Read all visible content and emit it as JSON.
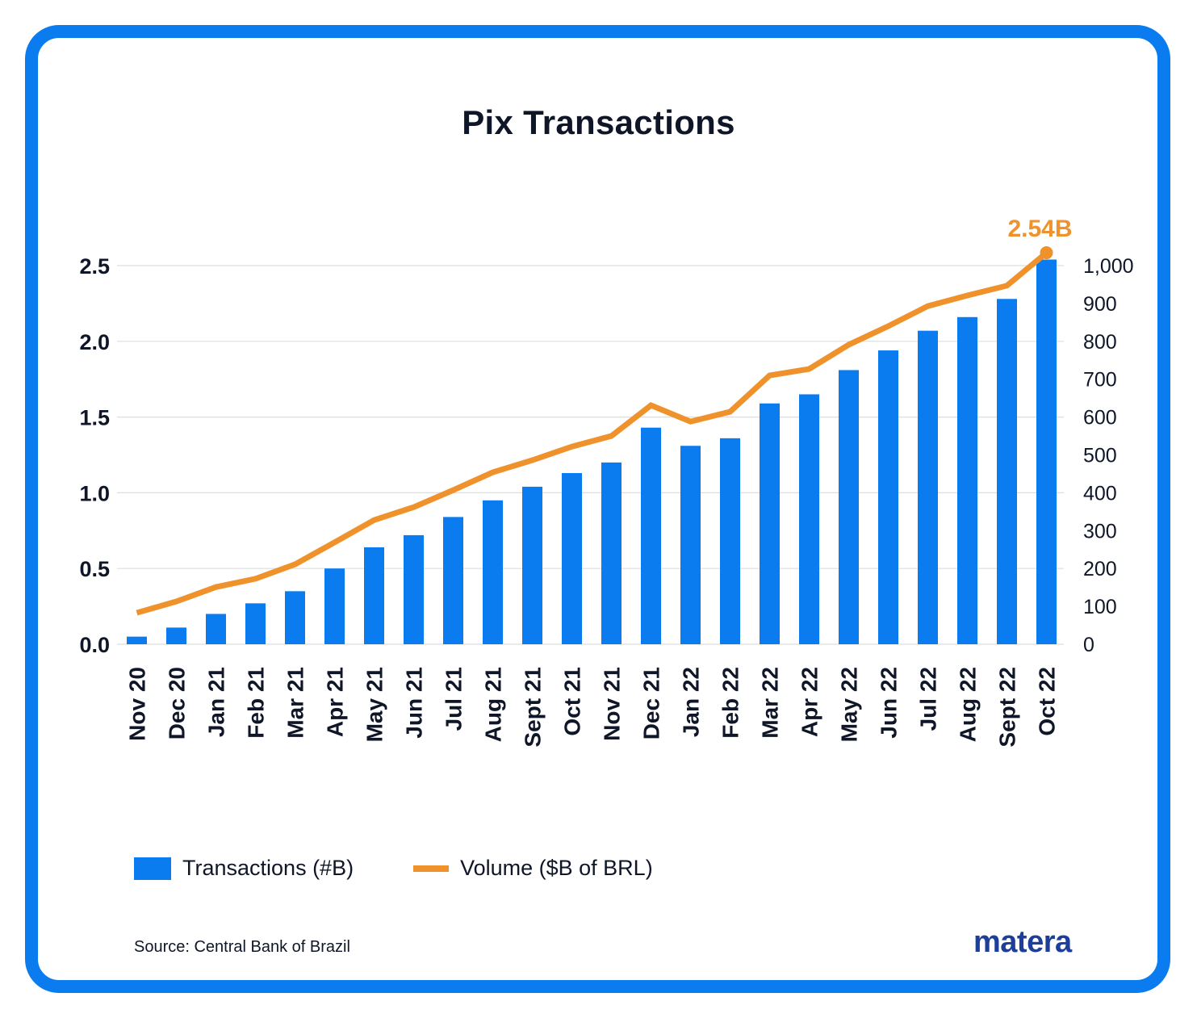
{
  "title": "Pix Transactions",
  "colors": {
    "frame": "#0a7cf0",
    "bar": "#0a7cf0",
    "line": "#f0922b",
    "text": "#0f1628",
    "logo": "#1e3f99",
    "grid": "#dddddd"
  },
  "chart_data": {
    "type": "bar",
    "title": "Pix Transactions",
    "categories": [
      "Nov 20",
      "Dec 20",
      "Jan 21",
      "Feb 21",
      "Mar 21",
      "Apr 21",
      "May 21",
      "Jun 21",
      "Jul 21",
      "Aug 21",
      "Sept 21",
      "Oct 21",
      "Nov 21",
      "Dec 21",
      "Jan 22",
      "Feb 22",
      "Mar 22",
      "Apr 22",
      "May 22",
      "Jun 22",
      "Jul 22",
      "Aug 22",
      "Sept 22",
      "Oct 22"
    ],
    "series": [
      {
        "name": "Transactions (#B)",
        "type": "bar",
        "axis": "left",
        "values": [
          0.05,
          0.11,
          0.2,
          0.27,
          0.35,
          0.5,
          0.64,
          0.72,
          0.84,
          0.95,
          1.04,
          1.13,
          1.2,
          1.43,
          1.31,
          1.36,
          1.59,
          1.65,
          1.81,
          1.94,
          2.07,
          2.16,
          2.28,
          2.54
        ]
      },
      {
        "name": "Volume ($B of BRL)",
        "type": "line",
        "axis": "right",
        "values": [
          83,
          113,
          151,
          173,
          211,
          269,
          328,
          362,
          407,
          454,
          486,
          522,
          550,
          631,
          588,
          614,
          710,
          727,
          791,
          840,
          893,
          921,
          947,
          1034
        ]
      }
    ],
    "y_left": {
      "ylim": [
        0,
        2.5
      ],
      "ticks": [
        "0.0",
        "0.5",
        "1.0",
        "1.5",
        "2.0",
        "2.5"
      ],
      "tick_values": [
        0,
        0.5,
        1.0,
        1.5,
        2.0,
        2.5
      ]
    },
    "y_right": {
      "ylim": [
        0,
        1000
      ],
      "ticks": [
        "0",
        "100",
        "200",
        "300",
        "400",
        "500",
        "600",
        "700",
        "800",
        "900",
        "1,000"
      ],
      "tick_values": [
        0,
        100,
        200,
        300,
        400,
        500,
        600,
        700,
        800,
        900,
        1000
      ]
    },
    "xlabel": "",
    "ylabel": "",
    "grid": true,
    "annotation": {
      "text": "2.54B",
      "category": "Oct 22",
      "series": "Volume ($B of BRL)"
    },
    "legend": {
      "placement": "bottom-left",
      "entries": [
        "Transactions (#B)",
        "Volume ($B of BRL)"
      ]
    }
  },
  "legend": {
    "bars_label": "Transactions (#B)",
    "line_label": "Volume ($B of BRL)"
  },
  "source": "Source: Central Bank of Brazil",
  "logo": "matera"
}
